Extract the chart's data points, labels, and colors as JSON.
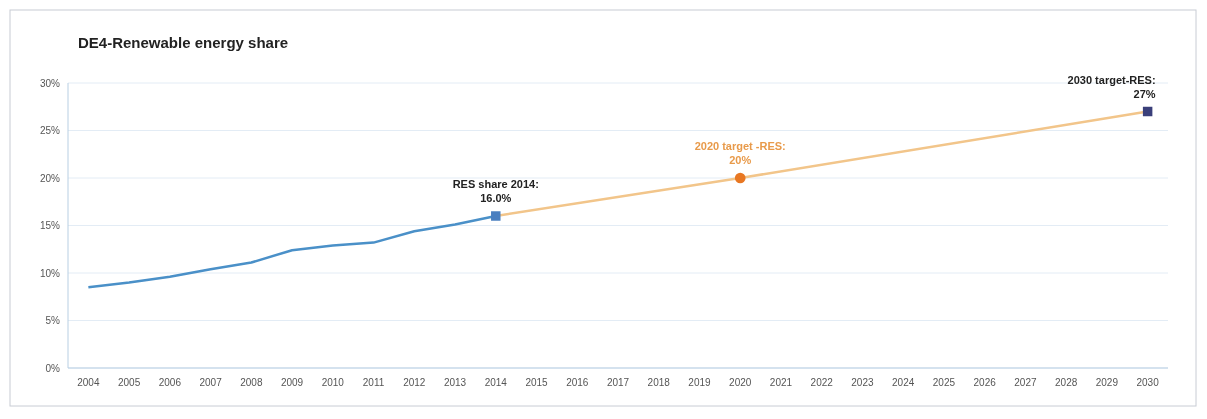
{
  "chart_data": {
    "type": "line",
    "title": "DE4-Renewable energy share",
    "series": [
      {
        "color": "#4a90c8",
        "marker": "none",
        "x": [
          2004,
          2005,
          2006,
          2007,
          2008,
          2009,
          2010,
          2011,
          2012,
          2013,
          2014
        ],
        "values": [
          8.5,
          9.0,
          9.6,
          10.4,
          11.1,
          12.4,
          12.9,
          13.2,
          14.4,
          15.1,
          16.0
        ]
      },
      {
        "color": "#f2c58a",
        "marker": "none",
        "x": [
          2014,
          2020,
          2030
        ],
        "values": [
          16.0,
          20,
          27
        ]
      },
      {
        "type": "scatter",
        "color": "#4a7fc0",
        "marker": "square",
        "x": [
          2014
        ],
        "values": [
          16.0
        ]
      },
      {
        "type": "scatter",
        "color": "#e87722",
        "marker": "circle",
        "x": [
          2020
        ],
        "values": [
          20
        ]
      },
      {
        "type": "scatter",
        "color": "#3a3f7a",
        "marker": "square",
        "x": [
          2030
        ],
        "values": [
          27
        ]
      }
    ],
    "annotations": [
      {
        "text": "RES share 2014:\n16.0%",
        "x": 2014,
        "y": 16.0
      },
      {
        "text": "2020 target -RES:\n20%",
        "x": 2020,
        "y": 20
      },
      {
        "text": "2030 target-RES:\n27%",
        "x": 2030,
        "y": 27
      }
    ],
    "xlim": [
      2003.5,
      2030.5
    ],
    "xticks": [
      2004,
      2005,
      2006,
      2007,
      2008,
      2009,
      2010,
      2011,
      2012,
      2013,
      2014,
      2015,
      2016,
      2017,
      2018,
      2019,
      2020,
      2021,
      2022,
      2023,
      2024,
      2025,
      2026,
      2027,
      2028,
      2029,
      2030
    ],
    "ylim": [
      0,
      30
    ],
    "yticks": [
      {
        "value": 0,
        "label": "0%"
      },
      {
        "value": 5,
        "label": "5%"
      },
      {
        "value": 10,
        "label": "10%"
      },
      {
        "value": 15,
        "label": "15%"
      },
      {
        "value": 20,
        "label": "20%"
      },
      {
        "value": 25,
        "label": "25%"
      },
      {
        "value": 30,
        "label": "30%"
      }
    ],
    "grid": "y"
  }
}
